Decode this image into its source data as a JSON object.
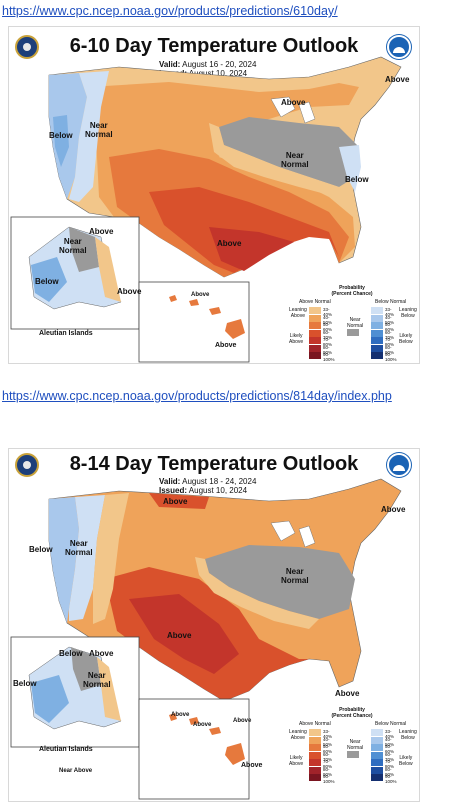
{
  "links": {
    "top": "https://www.cpc.ncep.noaa.gov/products/predictions/610day/",
    "middle": "https://www.cpc.ncep.noaa.gov/products/predictions/814day/index.php"
  },
  "map1": {
    "title": "6-10 Day Temperature Outlook",
    "valid_label": "Valid:",
    "valid": "August 16 - 20, 2024",
    "issued_label": "Issued:",
    "issued": "August 10, 2024",
    "labels": {
      "above_ne": "Above",
      "above_gl": "Above",
      "below_w": "Below",
      "near_normal_w": "Near\nNormal",
      "near_normal_e": "Near\nNormal",
      "below_e": "Below",
      "above_s": "Above",
      "ak_above": "Above",
      "ak_near": "Near\nNormal",
      "ak_below": "Below",
      "ak_above2": "Above",
      "aleutian": "Aleutian Islands",
      "hi_above": "Above",
      "hi_above2": "Above"
    }
  },
  "map2": {
    "title": "8-14 Day Temperature Outlook",
    "valid_label": "Valid:",
    "valid": "August 18 - 24, 2024",
    "issued_label": "Issued:",
    "issued": "August 10, 2024",
    "labels": {
      "above_n": "Above",
      "above_ne": "Above",
      "below_w": "Below",
      "near_normal_w": "Near\nNormal",
      "near_normal_e": "Near\nNormal",
      "above_s": "Above",
      "above_se": "Above",
      "ak_below": "Below",
      "ak_near": "Near\nNormal",
      "ak_above": "Above",
      "ak_below2": "Below",
      "aleutian": "Aleutian Islands",
      "aleutian_sub": "Near Above",
      "hi_above": "Above",
      "hi_above2": "Above",
      "hi_above3": "Above",
      "hi_above4": "Above"
    }
  },
  "legend": {
    "title": "Probability\n(Percent Chance)",
    "above_hdr": "Above Normal",
    "below_hdr": "Below Normal",
    "near_hdr": "Near\nNormal",
    "leaning_above": "Leaning\nAbove",
    "likely_above": "Likely\nAbove",
    "leaning_below": "Leaning\nBelow",
    "likely_below": "Likely\nBelow",
    "ranges": [
      "33-40%",
      "40-50%",
      "50-60%",
      "60-70%",
      "70-80%",
      "80-90%",
      "90-100%"
    ],
    "above_colors": [
      "#f2c68a",
      "#efa35a",
      "#e6793d",
      "#d9512c",
      "#c3352b",
      "#a0232a",
      "#7a1520"
    ],
    "below_colors": [
      "#cfe0f4",
      "#a9c8ec",
      "#7fb0e2",
      "#4f8fd3",
      "#2f6dc0",
      "#1e4ea0",
      "#142f70"
    ],
    "near_color": "#9a9a9a"
  },
  "colors": {
    "link": "#1f4fbf",
    "above_light": "#f2c68a",
    "above_mid": "#efa35a",
    "above_strong": "#e6793d",
    "above_deep": "#d9512c",
    "above_deeper": "#c3352b",
    "near": "#9a9a9a",
    "below_light": "#cfe0f4",
    "below_mid": "#a9c8ec",
    "below_strong": "#7fb0e2"
  },
  "icons": [
    "commerce-seal-icon",
    "noaa-logo-icon"
  ]
}
